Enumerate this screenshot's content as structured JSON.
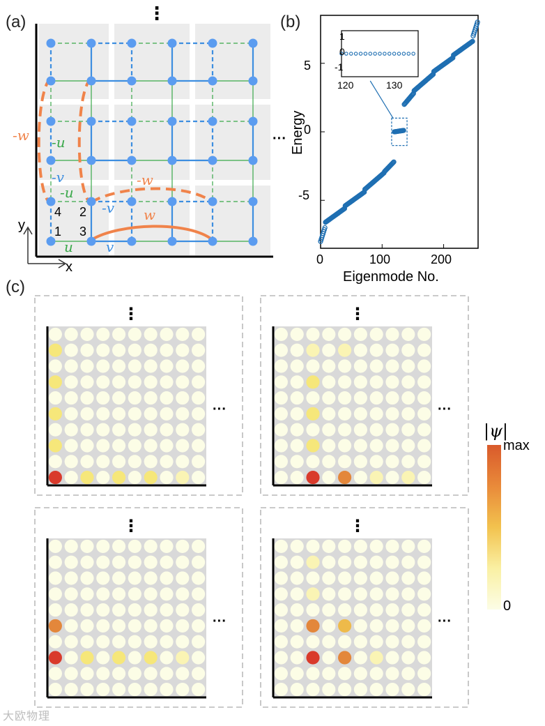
{
  "labels": {
    "a": "(a)",
    "b": "(b)",
    "c": "(c)"
  },
  "lattice": {
    "ellipsis": "⋮",
    "ellipsis_h": "···",
    "site_numbers": [
      "4",
      "2",
      "1",
      "3"
    ],
    "coupling_labels": {
      "neg_w_left": "-w",
      "neg_u_left": "-u",
      "neg_v_left": "-v",
      "neg_u_mid": "-u",
      "neg_v_mid": "-v",
      "neg_w_top": "-w",
      "w_bottom": "w",
      "u": "u",
      "v": "v"
    },
    "axes": {
      "x": "x",
      "y": "y"
    },
    "colors": {
      "blue": "#3d8ee0",
      "green": "#3aa84a",
      "orange": "#f0834a",
      "grid": "#ececec",
      "node": "#5b9cf0"
    }
  },
  "spectrum": {
    "ylabel": "Energy",
    "xlabel": "Eigenmode No.",
    "yticks": [
      "5",
      "0",
      "-5"
    ],
    "xticks": [
      "0",
      "100",
      "200"
    ],
    "inset": {
      "yticks": [
        "1",
        "0",
        "-1"
      ],
      "xticks": [
        "120",
        "130"
      ]
    },
    "color": "#1f6fb2"
  },
  "chart_data": {
    "type": "scatter",
    "title": "",
    "xlabel": "Eigenmode No.",
    "ylabel": "Energy",
    "xlim": [
      0,
      256
    ],
    "ylim": [
      -8.5,
      8.5
    ],
    "steps": [
      {
        "start": 0,
        "end": 8,
        "e0": -8.0,
        "e1": -7.0
      },
      {
        "start": 8,
        "end": 40,
        "e0": -6.6,
        "e1": -5.6
      },
      {
        "start": 40,
        "end": 72,
        "e0": -5.4,
        "e1": -4.4
      },
      {
        "start": 72,
        "end": 104,
        "e0": -4.2,
        "e1": -3.0
      },
      {
        "start": 104,
        "end": 120,
        "e0": -2.9,
        "e1": -2.2
      },
      {
        "start": 120,
        "end": 136,
        "e0": 0.0,
        "e1": 0.1
      },
      {
        "start": 136,
        "end": 152,
        "e0": 2.0,
        "e1": 2.8
      },
      {
        "start": 152,
        "end": 184,
        "e0": 3.0,
        "e1": 4.2
      },
      {
        "start": 184,
        "end": 216,
        "e0": 4.4,
        "e1": 5.4
      },
      {
        "start": 216,
        "end": 248,
        "e0": 5.6,
        "e1": 6.6
      },
      {
        "start": 248,
        "end": 256,
        "e0": 7.0,
        "e1": 8.0
      }
    ],
    "inset": {
      "xlim": [
        120,
        136
      ],
      "ylim": [
        -1.5,
        1.5
      ],
      "x_start": 120,
      "x_end": 135,
      "value": 0.0
    }
  },
  "modes": {
    "ellipsis_v": "⋮",
    "ellipsis_h": "···",
    "grid_size": 10,
    "panels": [
      {
        "hot": [
          [
            0,
            0,
            5
          ],
          [
            2,
            0,
            1
          ],
          [
            4,
            0,
            1
          ],
          [
            6,
            0,
            1
          ],
          [
            8,
            0,
            0.8
          ],
          [
            0,
            2,
            0.9
          ],
          [
            0,
            4,
            0.9
          ],
          [
            0,
            6,
            0.9
          ],
          [
            0,
            8,
            0.9
          ]
        ]
      },
      {
        "hot": [
          [
            2,
            0,
            5
          ],
          [
            4,
            0,
            3
          ],
          [
            6,
            0,
            0.6
          ],
          [
            2,
            2,
            0.9
          ],
          [
            2,
            4,
            0.9
          ],
          [
            2,
            6,
            0.9
          ],
          [
            4,
            2,
            0.5
          ],
          [
            4,
            8,
            0.7
          ],
          [
            2,
            8,
            0.6
          ],
          [
            0,
            2,
            0.5
          ],
          [
            8,
            0,
            0.6
          ]
        ]
      },
      {
        "hot": [
          [
            0,
            2,
            5
          ],
          [
            0,
            4,
            3
          ],
          [
            2,
            2,
            0.9
          ],
          [
            4,
            2,
            0.9
          ],
          [
            6,
            2,
            0.9
          ],
          [
            8,
            2,
            0.8
          ],
          [
            2,
            4,
            0.5
          ],
          [
            4,
            4,
            0.5
          ],
          [
            2,
            0,
            0.5
          ]
        ]
      },
      {
        "hot": [
          [
            2,
            2,
            5
          ],
          [
            4,
            2,
            3.2
          ],
          [
            2,
            4,
            3
          ],
          [
            4,
            4,
            1.6
          ],
          [
            6,
            2,
            0.6
          ],
          [
            2,
            6,
            0.6
          ],
          [
            2,
            8,
            0.6
          ],
          [
            4,
            6,
            0.5
          ],
          [
            8,
            2,
            0.5
          ]
        ]
      }
    ]
  },
  "colorbar": {
    "label": "|ψ|",
    "max": "max",
    "min": "0"
  },
  "watermark": "大欧物理"
}
